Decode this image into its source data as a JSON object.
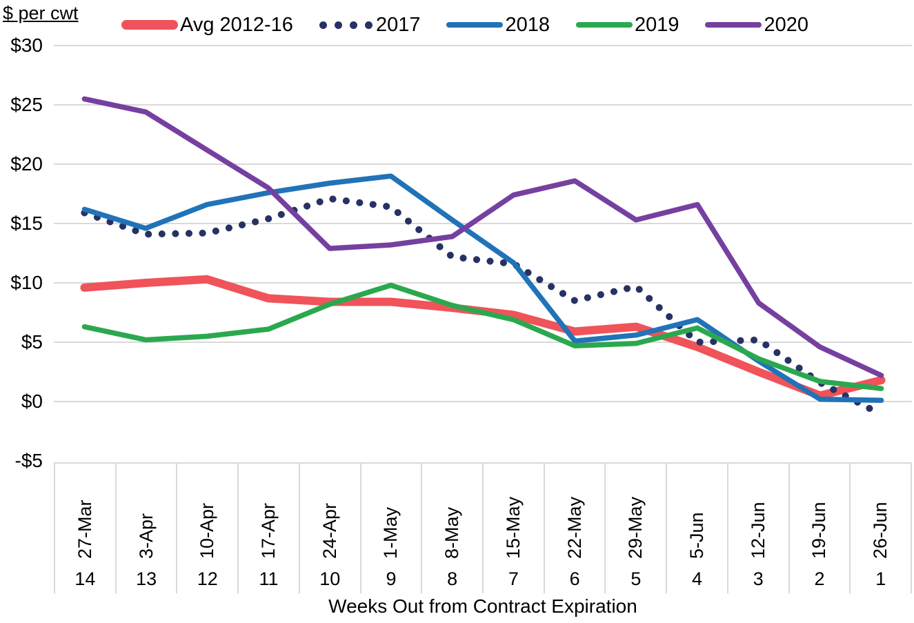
{
  "chart": {
    "y_axis_title": "$ per cwt",
    "x_axis_title": "Weeks Out from Contract Expiration",
    "y_tick_labels": [
      "$30",
      "$25",
      "$20",
      "$15",
      "$10",
      "$5",
      "$0",
      "-$5"
    ],
    "y_tick_values": [
      30,
      25,
      20,
      15,
      10,
      5,
      0,
      -5
    ],
    "gridline_color": "#d9d9d9"
  },
  "chart_data": {
    "type": "line",
    "title": "$ per cwt",
    "xlabel": "Weeks Out from Contract Expiration",
    "ylabel": "$ per cwt",
    "ylim": [
      -5,
      30
    ],
    "grid": true,
    "legend_position": "top",
    "categories": [
      "27-Mar",
      "3-Apr",
      "10-Apr",
      "17-Apr",
      "24-Apr",
      "1-May",
      "8-May",
      "15-May",
      "22-May",
      "29-May",
      "5-Jun",
      "12-Jun",
      "19-Jun",
      "26-Jun"
    ],
    "weeks_out": [
      "14",
      "13",
      "12",
      "11",
      "10",
      "9",
      "8",
      "7",
      "6",
      "5",
      "4",
      "3",
      "2",
      "1"
    ],
    "series": [
      {
        "name": "Avg 2012-16",
        "color": "#f0535a",
        "style": "solid-thick",
        "values": [
          9.6,
          10.0,
          10.3,
          8.7,
          8.4,
          8.4,
          7.9,
          7.3,
          5.9,
          6.3,
          4.6,
          2.5,
          0.5,
          1.8
        ]
      },
      {
        "name": "2017",
        "color": "#283163",
        "style": "dotted",
        "values": [
          15.9,
          14.1,
          14.2,
          15.4,
          17.1,
          16.4,
          12.2,
          11.6,
          8.5,
          9.7,
          5.0,
          5.2,
          1.6,
          -1.1
        ]
      },
      {
        "name": "2018",
        "color": "#2173b8",
        "style": "solid",
        "values": [
          16.2,
          14.6,
          16.6,
          17.6,
          18.4,
          19.0,
          15.3,
          11.7,
          5.1,
          5.6,
          6.9,
          3.4,
          0.2,
          0.1
        ]
      },
      {
        "name": "2019",
        "color": "#2ba84f",
        "style": "solid",
        "values": [
          6.3,
          5.2,
          5.5,
          6.1,
          8.2,
          9.8,
          8.1,
          6.9,
          4.7,
          4.9,
          6.2,
          3.6,
          1.7,
          1.1
        ]
      },
      {
        "name": "2020",
        "color": "#7540a0",
        "style": "solid",
        "values": [
          25.5,
          24.4,
          21.2,
          18.0,
          12.9,
          13.2,
          13.9,
          17.4,
          18.6,
          15.3,
          16.6,
          8.3,
          4.6,
          2.2
        ]
      }
    ]
  }
}
